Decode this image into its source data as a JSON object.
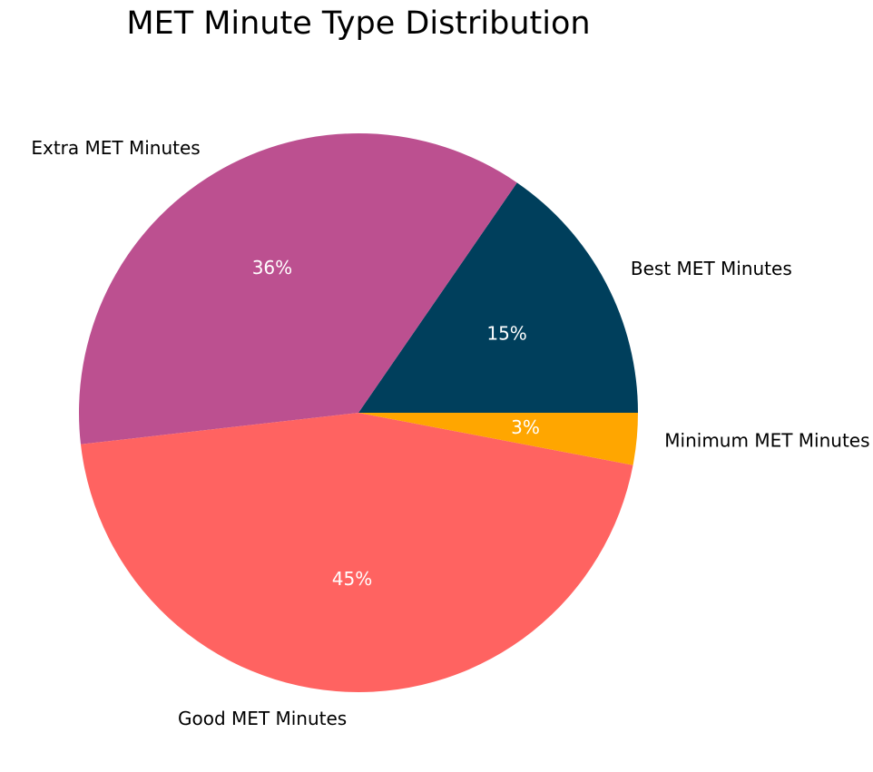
{
  "chart_data": {
    "type": "pie",
    "title": "MET Minute Type Distribution",
    "start_angle_deg": 0,
    "direction": "counterclockwise",
    "legend": "none",
    "slices": [
      {
        "label": "Best MET Minutes",
        "value": 15.4,
        "pct_label": "15%",
        "color": "#003f5c"
      },
      {
        "label": "Extra MET Minutes",
        "value": 36.4,
        "pct_label": "36%",
        "color": "#bc5090"
      },
      {
        "label": "Good MET Minutes",
        "value": 45.2,
        "pct_label": "45%",
        "color": "#ff6361"
      },
      {
        "label": "Minimum MET Minutes",
        "value": 3.0,
        "pct_label": "3%",
        "color": "#ffa600"
      }
    ]
  }
}
